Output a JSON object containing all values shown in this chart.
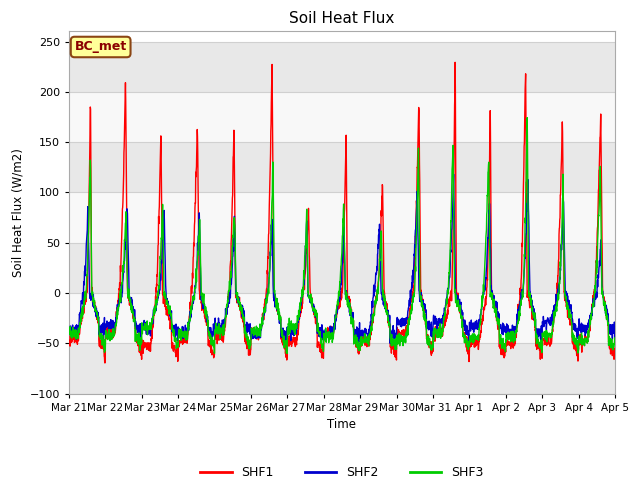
{
  "title": "Soil Heat Flux",
  "ylabel": "Soil Heat Flux (W/m2)",
  "xlabel": "Time",
  "ylim": [
    -100,
    260
  ],
  "yticks": [
    -100,
    -50,
    0,
    50,
    100,
    150,
    200,
    250
  ],
  "num_days": 15,
  "pts_per_day": 144,
  "shf1_color": "#ff0000",
  "shf2_color": "#0000cd",
  "shf3_color": "#00cc00",
  "fig_facecolor": "#ffffff",
  "plot_bg_color": "#ffffff",
  "band_color1": "#e8e8e8",
  "band_color2": "#f8f8f8",
  "grid_color": "#d0d0d0",
  "annotation_text": "BC_met",
  "annotation_facecolor": "#ffff99",
  "annotation_edgecolor": "#8B4513",
  "annotation_textcolor": "#8B0000",
  "line_width": 1.0,
  "legend_entries": [
    "SHF1",
    "SHF2",
    "SHF3"
  ],
  "x_tick_labels": [
    "Mar 21",
    "Mar 22",
    "Mar 23",
    "Mar 24",
    "Mar 25",
    "Mar 26",
    "Mar 27",
    "Mar 28",
    "Mar 29",
    "Mar 30",
    "Mar 31",
    "Apr 1",
    "Apr 2",
    "Apr 3",
    "Apr 4",
    "Apr 5"
  ],
  "shf1_day_peaks": [
    195,
    210,
    163,
    165,
    168,
    228,
    80,
    163,
    110,
    192,
    234,
    186,
    229,
    174,
    182
  ],
  "shf2_day_peaks": [
    83,
    83,
    83,
    80,
    72,
    75,
    75,
    70,
    70,
    100,
    113,
    90,
    115,
    95,
    50
  ],
  "shf3_day_peaks": [
    140,
    75,
    92,
    72,
    82,
    132,
    80,
    92,
    65,
    150,
    153,
    137,
    175,
    115,
    125
  ]
}
